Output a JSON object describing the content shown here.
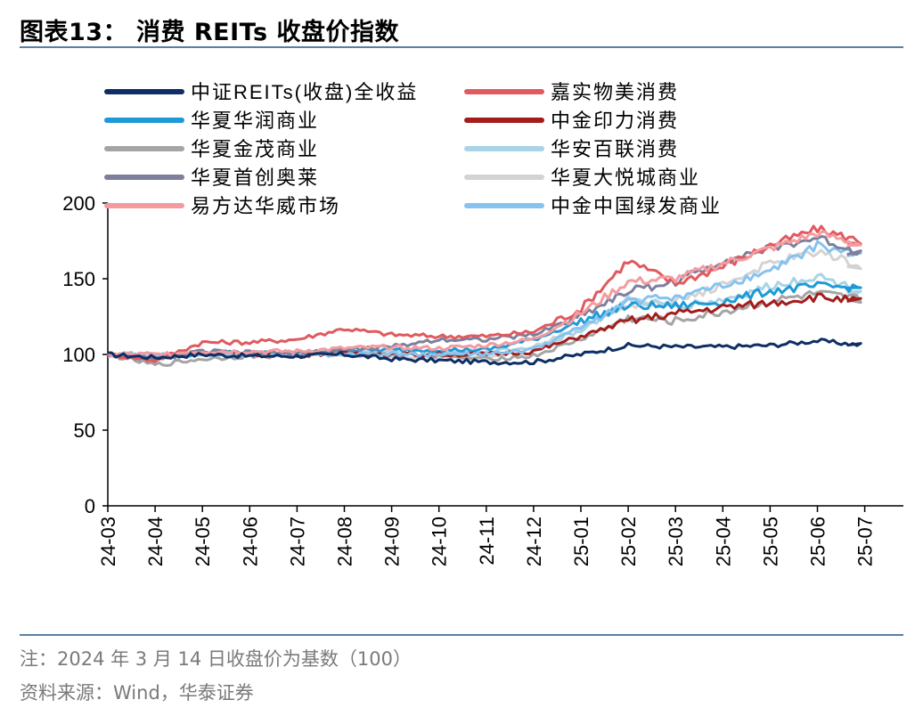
{
  "title": "图表13： 消费 REITs 收盘价指数",
  "note": "注：2024 年 3 月 14 日收盘价为基数（100）",
  "source": "资料来源：Wind，华泰证券",
  "chart_data": {
    "type": "line",
    "title": "消费 REITs 收盘价指数",
    "xlabel": "",
    "ylabel": "",
    "ylim": [
      0,
      200
    ],
    "yticks": [
      "0",
      "50",
      "100",
      "150",
      "200"
    ],
    "categories": [
      "24-03",
      "24-04",
      "24-05",
      "24-06",
      "24-07",
      "24-08",
      "24-09",
      "24-10",
      "24-11",
      "24-12",
      "25-01",
      "25-02",
      "25-03",
      "25-04",
      "25-05",
      "25-06",
      "25-07"
    ],
    "legend_position": "top-left",
    "series": [
      {
        "name": "中证REITs(收盘)全收益",
        "color": "#0e2f63",
        "start": 0.0,
        "values": [
          100,
          98,
          100,
          99,
          99,
          100,
          97,
          96,
          95,
          95,
          100,
          106,
          105,
          105,
          106,
          109,
          106
        ]
      },
      {
        "name": "嘉实物美消费",
        "color": "#e05a5f",
        "start": 0.0,
        "values": [
          100,
          96,
          108,
          108,
          110,
          117,
          113,
          112,
          112,
          115,
          130,
          162,
          147,
          158,
          172,
          183,
          174
        ]
      },
      {
        "name": "华夏华润商业",
        "color": "#1e9ad6",
        "start": 0.0,
        "values": [
          100,
          98,
          101,
          101,
          101,
          103,
          103,
          103,
          103,
          110,
          122,
          132,
          132,
          135,
          142,
          145,
          144
        ]
      },
      {
        "name": "中金印力消费",
        "color": "#a31d1d",
        "start": 0.0,
        "values": [
          100,
          98,
          101,
          100,
          100,
          101,
          100,
          100,
          100,
          102,
          112,
          122,
          127,
          131,
          134,
          138,
          135
        ]
      },
      {
        "name": "华夏金茂商业",
        "color": "#a4a4a4",
        "start": 0.0,
        "values": [
          100,
          93,
          97,
          99,
          99,
          101,
          100,
          99,
          97,
          99,
          110,
          124,
          122,
          128,
          135,
          140,
          136
        ]
      },
      {
        "name": "华安百联消费",
        "color": "#a8d4e6",
        "start": 0.0,
        "values": [
          100,
          98,
          100,
          100,
          100,
          102,
          102,
          102,
          102,
          104,
          116,
          136,
          132,
          136,
          145,
          152,
          141
        ]
      },
      {
        "name": "华夏首创奥莱",
        "color": "#7d7f9c",
        "start": 0.0,
        "values": [
          100,
          97,
          102,
          101,
          101,
          103,
          105,
          110,
          110,
          113,
          126,
          142,
          148,
          162,
          170,
          177,
          166
        ]
      },
      {
        "name": "华夏大悦城商业",
        "color": "#d3d3d3",
        "start": 0.0,
        "values": [
          100,
          97,
          101,
          100,
          100,
          100,
          99,
          98,
          98,
          105,
          118,
          132,
          135,
          146,
          160,
          168,
          158
        ]
      },
      {
        "name": "易方达华威市场",
        "color": "#f59ba0",
        "start": 1.0,
        "values": [
          100,
          100,
          102,
          102,
          102,
          104,
          105,
          104,
          106,
          110,
          127,
          148,
          150,
          160,
          170,
          180,
          172
        ]
      },
      {
        "name": "中金中国绿发商业",
        "color": "#86c3ef",
        "start": 6.0,
        "values": [
          100,
          100,
          100,
          100,
          100,
          100,
          100,
          100,
          100,
          103,
          118,
          135,
          138,
          145,
          155,
          172,
          165
        ]
      }
    ]
  }
}
